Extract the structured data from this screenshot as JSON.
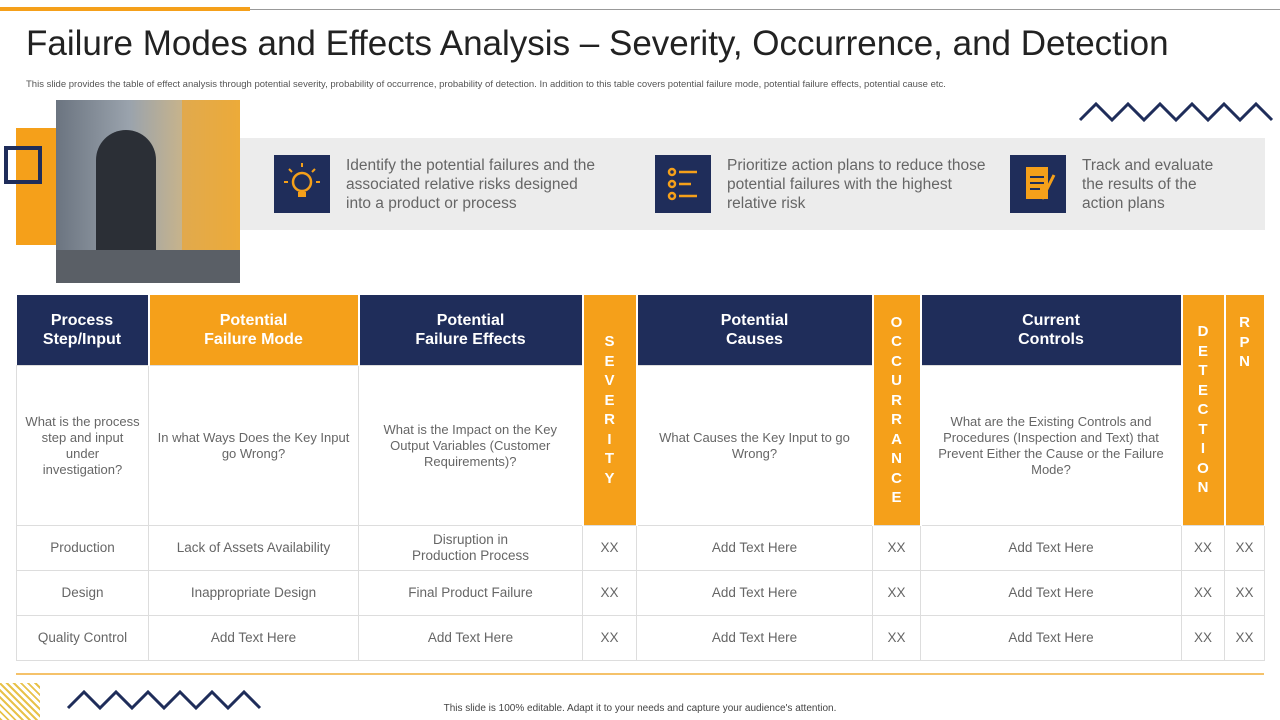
{
  "header": {
    "title": "Failure Modes and Effects Analysis – Severity, Occurrence, and Detection",
    "subtitle": "This slide provides the table of effect analysis through potential severity, probability of occurrence, probability of detection. In addition to this table covers potential failure mode, potential failure effects, potential cause etc."
  },
  "features": [
    {
      "text": "Identify the potential failures and the associated relative risks designed into a product or process"
    },
    {
      "text": "Prioritize action plans to reduce those potential failures with the highest relative risk"
    },
    {
      "text": "Track and evaluate the results of the action plans"
    }
  ],
  "table": {
    "headers": [
      "Process\nStep/Input",
      "Potential\nFailure Mode",
      "Potential\nFailure Effects",
      "SEVERITY",
      "Potential\nCauses",
      "OCCURRANCE",
      "Current\nControls",
      "DETECTION",
      "RPN"
    ],
    "descriptions": [
      "What is the process step and input under investigation?",
      "In what Ways Does the Key Input go Wrong?",
      "What is the Impact on the Key Output Variables (Customer Requirements)?",
      "What Causes the Key Input to go Wrong?",
      "What are the Existing Controls and Procedures (Inspection and Text) that Prevent Either the Cause or the Failure Mode?"
    ],
    "rows": [
      [
        "Production",
        "Lack of Assets Availability",
        "Disruption in\nProduction Process",
        "XX",
        "Add Text Here",
        "XX",
        "Add Text Here",
        "XX",
        "XX"
      ],
      [
        "Design",
        "Inappropriate  Design",
        "Final Product Failure",
        "XX",
        "Add Text Here",
        "XX",
        "Add Text Here",
        "XX",
        "XX"
      ],
      [
        "Quality Control",
        "Add Text Here",
        "Add Text Here",
        "XX",
        "Add Text Here",
        "XX",
        "Add Text Here",
        "XX",
        "XX"
      ]
    ]
  },
  "footer": "This slide is 100% editable. Adapt it to your needs and capture your audience's attention."
}
